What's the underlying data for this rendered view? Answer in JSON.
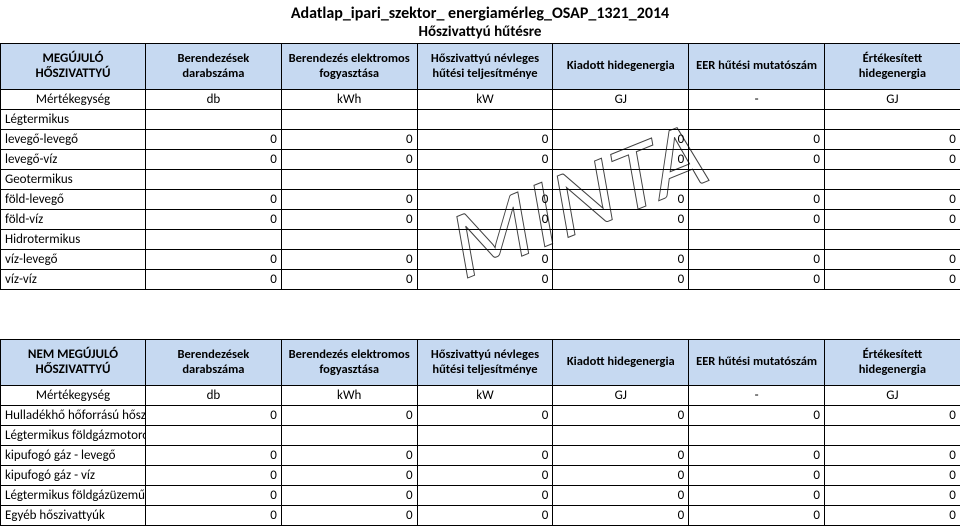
{
  "title": "Adatlap_ipari_szektor_ energiamérleg_OSAP_1321_2014",
  "subtitle": "Hőszivattyú hűtésre",
  "watermark": "MINTA",
  "colors": {
    "header_bg": "#c6d9f1",
    "border": "#000000",
    "bg": "#ffffff"
  },
  "columns": [
    {
      "key": "c1",
      "label": "Berendezések darabszáma",
      "unit": "db"
    },
    {
      "key": "c2",
      "label": "Berendezés elektromos fogyasztása",
      "unit": "kWh"
    },
    {
      "key": "c3",
      "label": "Hőszivattyú névleges hűtési teljesítménye",
      "unit": "kW"
    },
    {
      "key": "c4",
      "label": "Kiadott hidegenergia",
      "unit": "GJ"
    },
    {
      "key": "c5",
      "label": "EER hűtési mutatószám",
      "unit": "-"
    },
    {
      "key": "c6",
      "label": "Értékesített hidegenergia",
      "unit": "GJ"
    }
  ],
  "unit_row_label": "Mértékegység",
  "table1": {
    "row_header": "MEGÚJULÓ HŐSZIVATTYÚ",
    "rows": [
      {
        "label": "Légtermikus",
        "type": "cat"
      },
      {
        "label": "levegő-levegő",
        "type": "data",
        "values": [
          0,
          0,
          0,
          0,
          0,
          0
        ]
      },
      {
        "label": "levegő-víz",
        "type": "data",
        "values": [
          0,
          0,
          0,
          0,
          0,
          0
        ]
      },
      {
        "label": "Geotermikus",
        "type": "cat"
      },
      {
        "label": "föld-levegő",
        "type": "data",
        "values": [
          0,
          0,
          0,
          0,
          0,
          0
        ]
      },
      {
        "label": "föld-víz",
        "type": "data",
        "values": [
          0,
          0,
          0,
          0,
          0,
          0
        ]
      },
      {
        "label": "Hidrotermikus",
        "type": "cat"
      },
      {
        "label": "víz-levegő",
        "type": "data",
        "values": [
          0,
          0,
          0,
          0,
          0,
          0
        ]
      },
      {
        "label": "víz-víz",
        "type": "data",
        "values": [
          0,
          0,
          0,
          0,
          0,
          0
        ]
      }
    ]
  },
  "table2": {
    "row_header": "NEM MEGÚJULÓ HŐSZIVATTYÚ",
    "rows": [
      {
        "label": "Hulladékhő hőforrású hőszivattyú",
        "type": "data",
        "values": [
          0,
          0,
          0,
          0,
          0,
          0
        ]
      },
      {
        "label": "Légtermikus földgázmotoros",
        "type": "cat"
      },
      {
        "label": "kipufogó gáz - levegő",
        "type": "data",
        "values": [
          0,
          0,
          0,
          0,
          0,
          0
        ]
      },
      {
        "label": "kipufogó gáz - víz",
        "type": "data",
        "values": [
          0,
          0,
          0,
          0,
          0,
          0
        ]
      },
      {
        "label": "Légtermikus földgázüzemű",
        "type": "data",
        "values": [
          0,
          0,
          0,
          0,
          0,
          0
        ]
      },
      {
        "label": "Egyéb hőszivattyúk",
        "type": "data",
        "values": [
          0,
          0,
          0,
          0,
          0,
          0
        ]
      }
    ]
  }
}
